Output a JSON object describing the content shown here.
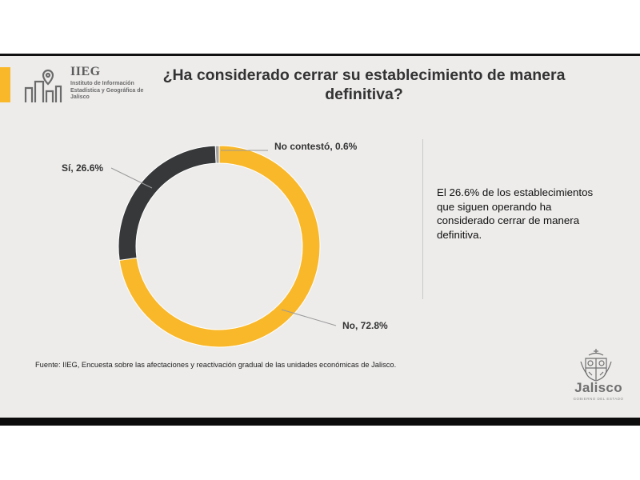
{
  "header": {
    "org_short": "IIEG",
    "org_full": "Instituto de Información Estadística y Geográfica de Jalisco",
    "title": "¿Ha considerado cerrar su establecimiento de manera definitiva?"
  },
  "chart_data": {
    "type": "pie",
    "variant": "donut",
    "slices": [
      {
        "label": "No",
        "value": 72.8,
        "text": "No, 72.8%",
        "color": "#f9b82a"
      },
      {
        "label": "Sí",
        "value": 26.6,
        "text": "Sí, 26.6%",
        "color": "#363839"
      },
      {
        "label": "No contestó",
        "value": 0.6,
        "text": "No contestó, 0.6%",
        "color": "#a3a3a3"
      }
    ]
  },
  "insight": "El 26.6% de los establecimientos que siguen operando ha considerado cerrar de manera definitiva.",
  "source": "Fuente: IIEG, Encuesta sobre las afectaciones y reactivación gradual de las unidades económicas de Jalisco.",
  "brand": {
    "name": "Jalisco",
    "tagline": "GOBIERNO DEL ESTADO",
    "accent_color": "#f9b82a"
  }
}
